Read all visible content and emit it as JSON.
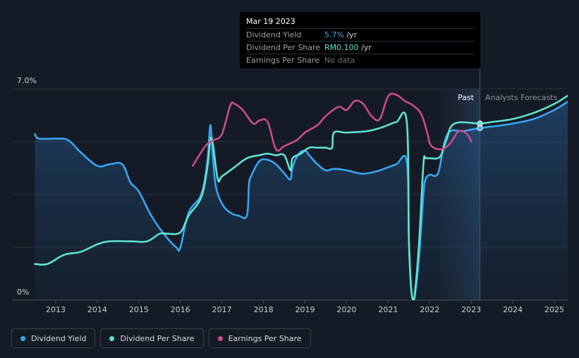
{
  "tooltip": {
    "date": "Mar 19 2023",
    "rows": [
      {
        "label": "Dividend Yield",
        "value": "5.7%",
        "unit": " /yr"
      },
      {
        "label": "Dividend Per Share",
        "value": "RM0.100",
        "unit": " /yr"
      },
      {
        "label": "Earnings Per Share",
        "value": "No data",
        "unit": ""
      }
    ]
  },
  "legend": {
    "items": [
      {
        "label": "Dividend Yield",
        "color": "#37a5f0"
      },
      {
        "label": "Dividend Per Share",
        "color": "#5fe2cf"
      },
      {
        "label": "Earnings Per Share",
        "color": "#c94b8c"
      }
    ]
  },
  "chart_data": {
    "type": "line",
    "title": "",
    "xlabel": "",
    "ylabel": "",
    "x_ticks": [
      "2013",
      "2014",
      "2015",
      "2016",
      "2017",
      "2018",
      "2019",
      "2020",
      "2021",
      "2022",
      "2023",
      "2024",
      "2025"
    ],
    "y_ticks": [
      "0%",
      "7.0%"
    ],
    "ylim": [
      0,
      7.0
    ],
    "xlim": [
      2012.45,
      2025.35
    ],
    "grid": true,
    "region_labels": {
      "past": "Past",
      "forecast": "Analysts Forecasts"
    },
    "past_region": [
      2022.25,
      2023.21
    ],
    "cursor_x": 2023.21,
    "legend_position": "bottom-left",
    "series": [
      {
        "name": "Dividend Yield",
        "color": "#37a5f0",
        "x": [
          2012.5,
          2012.6,
          2013.0,
          2013.3,
          2013.6,
          2014.0,
          2014.3,
          2014.6,
          2014.8,
          2015.0,
          2015.3,
          2015.6,
          2015.9,
          2016.0,
          2016.2,
          2016.5,
          2016.65,
          2016.72,
          2016.78,
          2016.85,
          2017.0,
          2017.2,
          2017.4,
          2017.6,
          2017.65,
          2017.7,
          2017.9,
          2018.1,
          2018.3,
          2018.5,
          2018.65,
          2018.7,
          2018.85,
          2019.0,
          2019.1,
          2019.3,
          2019.5,
          2019.7,
          2020.0,
          2020.3,
          2020.5,
          2020.8,
          2021.0,
          2021.2,
          2021.45,
          2021.5,
          2021.55,
          2021.6,
          2021.65,
          2021.75,
          2021.85,
          2021.9,
          2022.0,
          2022.2,
          2022.35,
          2022.5,
          2022.8,
          2023.21,
          2023.5,
          2024.0,
          2024.5,
          2025.0,
          2025.35
        ],
        "y": [
          5.5,
          5.35,
          5.35,
          5.3,
          4.9,
          4.45,
          4.5,
          4.5,
          3.9,
          3.6,
          2.8,
          2.2,
          1.75,
          1.75,
          2.9,
          3.5,
          4.6,
          5.8,
          4.8,
          3.8,
          3.2,
          2.9,
          2.8,
          2.8,
          3.8,
          4.1,
          4.6,
          4.65,
          4.5,
          4.2,
          4.0,
          4.4,
          4.85,
          4.95,
          4.8,
          4.5,
          4.3,
          4.35,
          4.3,
          4.2,
          4.2,
          4.3,
          4.4,
          4.5,
          4.6,
          2.0,
          0.5,
          0.0,
          0.2,
          1.5,
          3.5,
          4.0,
          4.15,
          4.2,
          5.2,
          5.6,
          5.6,
          5.7,
          5.75,
          5.85,
          6.0,
          6.3,
          6.6
        ]
      },
      {
        "name": "Dividend Per Share",
        "color": "#5fe2cf",
        "x": [
          2012.5,
          2012.8,
          2013.2,
          2013.6,
          2014.0,
          2014.3,
          2014.8,
          2015.2,
          2015.5,
          2015.7,
          2016.0,
          2016.2,
          2016.5,
          2016.65,
          2016.72,
          2016.78,
          2016.9,
          2017.0,
          2017.3,
          2017.6,
          2017.9,
          2018.1,
          2018.3,
          2018.5,
          2018.65,
          2018.7,
          2018.9,
          2019.1,
          2019.3,
          2019.5,
          2019.65,
          2019.7,
          2020.0,
          2020.5,
          2020.8,
          2021.0,
          2021.2,
          2021.45,
          2021.5,
          2021.55,
          2021.6,
          2021.65,
          2021.75,
          2021.85,
          2021.9,
          2022.0,
          2022.25,
          2022.4,
          2022.6,
          2023.21,
          2023.5,
          2024.0,
          2024.5,
          2025.0,
          2025.35
        ],
        "y": [
          1.2,
          1.2,
          1.5,
          1.6,
          1.85,
          1.95,
          1.95,
          1.95,
          2.2,
          2.2,
          2.25,
          2.8,
          3.4,
          4.4,
          5.3,
          5.2,
          4.0,
          4.1,
          4.4,
          4.7,
          4.8,
          4.85,
          4.8,
          4.8,
          4.3,
          4.7,
          4.85,
          5.05,
          5.05,
          5.05,
          5.05,
          5.55,
          5.55,
          5.6,
          5.7,
          5.8,
          5.9,
          5.9,
          2.0,
          0.5,
          0.0,
          0.3,
          2.0,
          4.5,
          4.7,
          4.7,
          4.75,
          5.3,
          5.85,
          5.85,
          5.9,
          6.0,
          6.2,
          6.5,
          6.8
        ]
      },
      {
        "name": "Earnings Per Share",
        "color": "#c94b8c",
        "x": [
          2016.3,
          2016.6,
          2016.8,
          2017.0,
          2017.2,
          2017.3,
          2017.5,
          2017.75,
          2017.9,
          2018.1,
          2018.3,
          2018.5,
          2018.8,
          2019.0,
          2019.3,
          2019.5,
          2019.8,
          2020.0,
          2020.2,
          2020.4,
          2020.6,
          2020.8,
          2021.0,
          2021.2,
          2021.4,
          2021.6,
          2021.8,
          2021.95,
          2022.0,
          2022.1,
          2022.3,
          2022.5,
          2022.7,
          2022.9,
          2023.0
        ],
        "y": [
          4.45,
          5.1,
          5.3,
          5.5,
          6.45,
          6.5,
          6.3,
          5.85,
          5.95,
          5.9,
          5.0,
          5.1,
          5.3,
          5.55,
          5.8,
          6.1,
          6.4,
          6.3,
          6.6,
          6.5,
          6.1,
          6.0,
          6.75,
          6.8,
          6.6,
          6.45,
          6.15,
          5.5,
          5.2,
          5.05,
          5.0,
          5.2,
          5.6,
          5.5,
          5.25
        ]
      }
    ],
    "markers": [
      {
        "series": "Dividend Yield",
        "x": 2023.21,
        "y": 5.7
      },
      {
        "series": "Dividend Per Share",
        "x": 2023.21,
        "y": 5.85
      }
    ]
  }
}
